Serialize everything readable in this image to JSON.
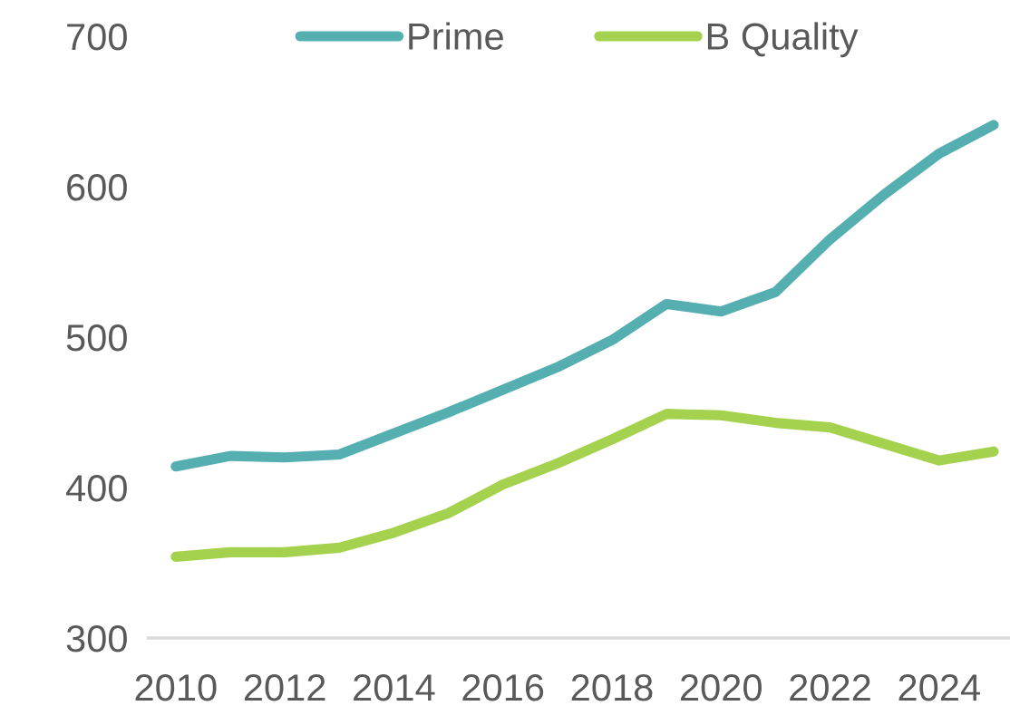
{
  "chart_data": {
    "type": "line",
    "x": [
      2010,
      2011,
      2012,
      2013,
      2014,
      2015,
      2016,
      2017,
      2018,
      2019,
      2020,
      2021,
      2022,
      2023,
      2024,
      2025
    ],
    "series": [
      {
        "name": "Prime",
        "color": "#55afb1",
        "values": [
          414,
          421,
          420,
          422,
          436,
          450,
          465,
          480,
          498,
          522,
          517,
          530,
          565,
          595,
          622,
          641
        ]
      },
      {
        "name": "B Quality",
        "color": "#a5d24e",
        "values": [
          354,
          357,
          357,
          360,
          370,
          383,
          402,
          416,
          432,
          449,
          448,
          443,
          440,
          429,
          418,
          424
        ]
      }
    ],
    "xlim": [
      2009.5,
      2025.3
    ],
    "xticks": [
      2010,
      2012,
      2014,
      2016,
      2018,
      2020,
      2022,
      2024
    ],
    "ylim": [
      300,
      700
    ],
    "yticks": [
      300,
      400,
      500,
      600,
      700
    ],
    "grid": false,
    "legend": "top",
    "marker": "none",
    "line_style": "solid"
  }
}
